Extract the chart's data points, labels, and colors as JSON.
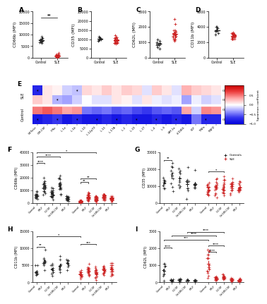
{
  "panel_A": {
    "ylabel": "CD66b (MFI)",
    "ylim": [
      0,
      20000
    ],
    "yticks": [
      0,
      5000,
      10000,
      15000,
      20000
    ],
    "control_vals": [
      7000,
      8500,
      6500,
      9000,
      7500,
      8000,
      6800,
      7200,
      8200,
      7000
    ],
    "sle_vals": [
      1000,
      500,
      2000,
      1500,
      800,
      300,
      1200,
      600,
      900,
      400,
      1100,
      700,
      1300,
      500,
      200,
      800,
      400,
      600,
      350,
      900,
      1100,
      700,
      500,
      800,
      1400
    ],
    "sig": "**"
  },
  "panel_B": {
    "ylabel": "CD35 (MFI)",
    "ylim": [
      0,
      25000
    ],
    "yticks": [
      0,
      5000,
      10000,
      15000,
      20000,
      25000
    ],
    "control_vals": [
      10000,
      11500,
      9000,
      10500,
      10000,
      9500,
      11000
    ],
    "sle_vals": [
      8000,
      10000,
      9500,
      11000,
      8500,
      9000,
      10500,
      9000,
      8000,
      11000,
      10000,
      9500,
      8500,
      9000,
      10500,
      9500,
      8000,
      10000,
      11000,
      9000,
      8500,
      7500,
      12000
    ],
    "sig": ""
  },
  "panel_C": {
    "ylabel": "CD62L (MFI)",
    "ylim": [
      0,
      3000
    ],
    "yticks": [
      0,
      1000,
      2000,
      3000
    ],
    "control_vals": [
      800,
      1200,
      600,
      1000,
      900,
      1100,
      700,
      800,
      950
    ],
    "sle_vals": [
      1200,
      1500,
      1800,
      1400,
      1600,
      1300,
      1700,
      1500,
      1200,
      1400,
      1600,
      1800,
      1300,
      1500,
      1400,
      1200,
      1600,
      1700,
      1400,
      1300,
      2200,
      1100,
      1500,
      2500
    ],
    "sig": ""
  },
  "panel_D": {
    "ylabel": "CD11b (MFI)",
    "ylim": [
      0,
      6000
    ],
    "yticks": [
      0,
      2000,
      4000,
      6000
    ],
    "control_vals": [
      3500,
      4000,
      3000,
      3800,
      3500,
      4000,
      3200,
      3600
    ],
    "sle_vals": [
      2500,
      3000,
      2800,
      3200,
      2500,
      2800,
      3000,
      2600,
      3100,
      2700,
      2900,
      2500,
      3000,
      2800,
      2500,
      2900,
      3100,
      2700,
      2600,
      3000,
      2800,
      2900,
      2500,
      3300
    ],
    "sig": ""
  },
  "heatmap": {
    "xlabels": [
      "NETs/se",
      "GM-CSF",
      "IFNa",
      "IL-1a",
      "IL-1b",
      "IL-10",
      "IL-12p70",
      "IL-15",
      "IL-17A",
      "IL-2",
      "IL-23",
      "IL-27",
      "IL-4",
      "IL-6",
      "MIP-1a",
      "sCD40L",
      "SCF",
      "TNFa",
      "TNFD"
    ],
    "SLE_CD66b": [
      -0.75,
      0.1,
      0.05,
      -0.15,
      -0.2,
      0.15,
      0.1,
      0.2,
      0.1,
      0.2,
      0.15,
      -0.1,
      0.2,
      0.1,
      -0.1,
      0.3,
      0.2,
      0.15,
      0.1
    ],
    "SLE_CD62L": [
      0.2,
      0.1,
      -0.25,
      -0.3,
      -0.15,
      0.0,
      -0.1,
      -0.1,
      0.1,
      0.05,
      -0.1,
      0.1,
      -0.05,
      -0.1,
      -0.05,
      -0.3,
      -0.05,
      -0.15,
      -0.1
    ],
    "Control_CD66b": [
      0.5,
      0.6,
      0.5,
      0.35,
      0.4,
      -0.45,
      -0.5,
      -0.45,
      -0.55,
      -0.5,
      -0.6,
      -0.65,
      -0.55,
      -0.5,
      -0.55,
      0.35,
      -0.15,
      0.45,
      0.4
    ],
    "Control_CD62L": [
      -0.85,
      -0.75,
      -0.65,
      -0.85,
      -0.75,
      -0.85,
      -0.85,
      -0.75,
      -0.85,
      -0.75,
      -0.85,
      -0.85,
      -0.75,
      -0.85,
      -0.75,
      -0.85,
      -0.45,
      -0.75,
      -0.75
    ],
    "SLE_CD66b_sig": [
      true,
      false,
      false,
      false,
      true,
      false,
      false,
      false,
      false,
      false,
      false,
      false,
      false,
      false,
      false,
      false,
      false,
      false,
      false
    ],
    "SLE_CD62L_sig": [
      false,
      false,
      true,
      false,
      false,
      false,
      false,
      false,
      false,
      false,
      false,
      false,
      false,
      false,
      false,
      false,
      false,
      false,
      false
    ],
    "Control_CD66b_sig": [
      false,
      false,
      false,
      false,
      false,
      false,
      false,
      false,
      false,
      false,
      false,
      false,
      false,
      false,
      false,
      false,
      false,
      false,
      false
    ],
    "Control_CD62L_sig": [
      true,
      false,
      true,
      false,
      true,
      false,
      true,
      false,
      true,
      false,
      true,
      false,
      true,
      false,
      true,
      false,
      false,
      true,
      false
    ]
  },
  "panel_F": {
    "ylabel": "CD66b (MFI)",
    "ylim": [
      0,
      40000
    ],
    "yticks": [
      0,
      10000,
      20000,
      30000,
      40000
    ],
    "ctrl_bases": [
      6000,
      12000,
      8000,
      14000,
      3500
    ],
    "sle_bases": [
      1500,
      5000,
      3500,
      5500,
      3500
    ],
    "ctrl_groups": [
      "Control",
      "fMLF",
      "G-CSF",
      "G+GM-CSF",
      "fMLF"
    ],
    "sle_groups": [
      "Control",
      "fMLF",
      "G-CSF",
      "G+GM-CSF",
      "fMLF"
    ]
  },
  "panel_G": {
    "ylabel": "CD35 (MFI)",
    "ylim": [
      0,
      30000
    ],
    "yticks": [
      0,
      10000,
      20000,
      30000
    ],
    "ctrl_bases": [
      12000,
      15000,
      13000,
      14000,
      11000
    ],
    "sle_bases": [
      8000,
      9500,
      10500,
      9500,
      9000
    ],
    "ctrl_groups": [
      "Control",
      "fMLF",
      "G-CSF",
      "G+GM-CSF",
      "fMLF"
    ],
    "sle_groups": [
      "Control",
      "fMLF",
      "G-CSF",
      "G+GM-CSF",
      "fMLF"
    ]
  },
  "panel_H": {
    "ylabel": "CD11b (MFI)",
    "ylim": [
      0,
      15000
    ],
    "yticks": [
      0,
      5000,
      10000,
      15000
    ],
    "ctrl_bases": [
      3500,
      5500,
      3500,
      5000,
      4800
    ],
    "sle_bases": [
      2200,
      3500,
      3000,
      3200,
      3800
    ],
    "ctrl_groups": [
      "Control",
      "fMLF",
      "G-CSF",
      "G+GM-CSF",
      "fMLF"
    ],
    "sle_groups": [
      "Control",
      "fMLF",
      "G-CSF",
      "G+GM-CSF",
      "fMLF"
    ]
  },
  "panel_I": {
    "ylabel": "CD62L (MFI)",
    "ylim": [
      0,
      3000
    ],
    "yticks": [
      0,
      1000,
      2000,
      3000
    ],
    "ctrl_bases": [
      800,
      120,
      130,
      100,
      100
    ],
    "sle_bases": [
      1100,
      250,
      280,
      180,
      130
    ],
    "ctrl_groups": [
      "Control",
      "fMLF",
      "G-CSF",
      "G+GM-CSF",
      "fMLF"
    ],
    "sle_groups": [
      "Control",
      "fMLF",
      "G-CSF",
      "G+GM-CSF",
      "fMLF"
    ]
  },
  "colors": {
    "control": "#222222",
    "sle": "#cc2222"
  }
}
